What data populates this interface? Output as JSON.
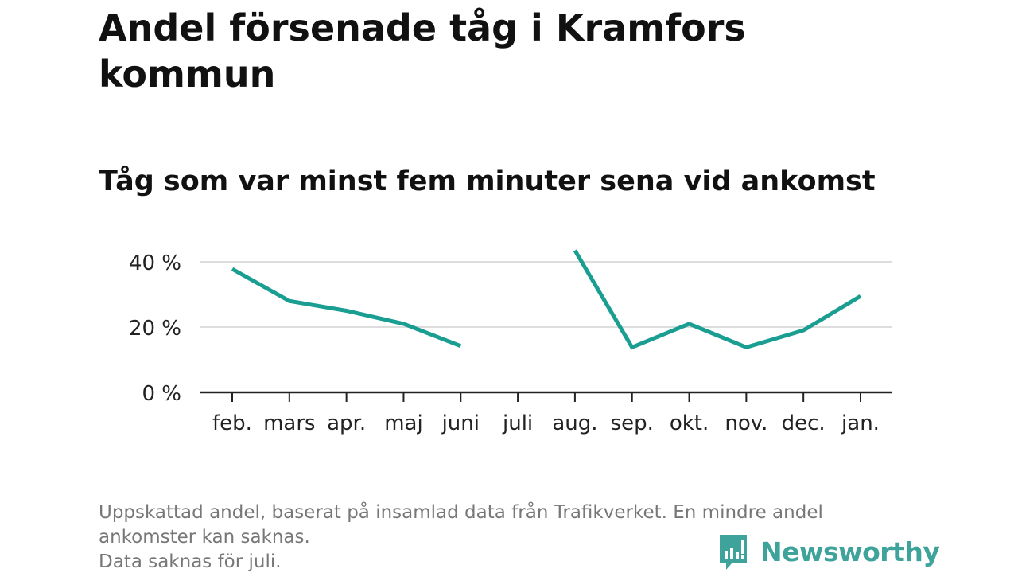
{
  "chart_data": {
    "type": "line",
    "title": "Andel försenade tåg i Kramfors kommun",
    "subtitle": "Tåg som var minst fem minuter sena vid ankomst",
    "xlabel": "",
    "ylabel": "",
    "categories": [
      "feb.",
      "mars",
      "apr.",
      "maj",
      "juni",
      "juli",
      "aug.",
      "sep.",
      "okt.",
      "nov.",
      "dec.",
      "jan."
    ],
    "y_ticks": [
      0,
      20,
      40
    ],
    "y_tick_labels": [
      "0 %",
      "20 %",
      "40 %"
    ],
    "ylim": [
      0,
      40
    ],
    "grid": true,
    "legend": "none",
    "line_color": "#1a9e92",
    "series": [
      {
        "values": [
          37.8,
          28.0,
          25.0,
          21.0,
          14.2,
          null,
          43.5,
          13.8,
          21.0,
          13.8,
          19.0,
          29.5
        ]
      }
    ],
    "footnote_lines": [
      "Uppskattad andel, baserat på insamlad data från Trafikverket. En mindre andel",
      "ankomster kan saknas.",
      "Data saknas för juli."
    ]
  },
  "brand": {
    "name": "Newsworthy",
    "color": "#3ea39a",
    "icon": "bar-chart-speech-bubble-icon"
  }
}
